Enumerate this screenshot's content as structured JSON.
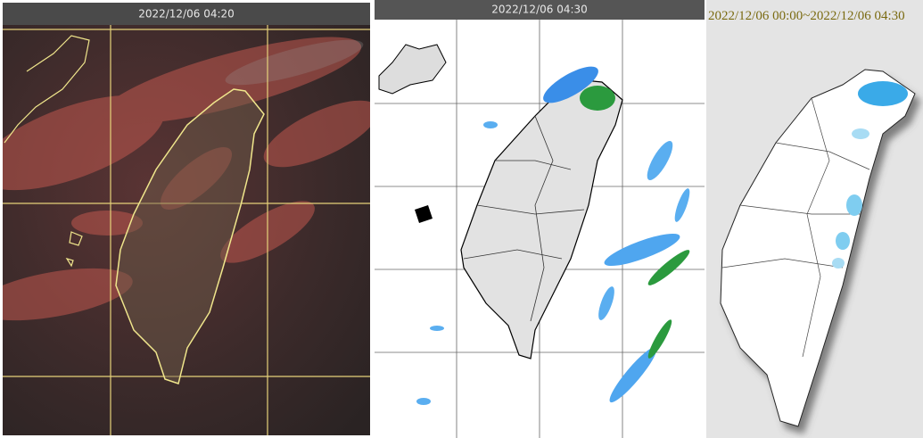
{
  "panels": [
    {
      "title": "2022/12/06 04:20"
    },
    {
      "title": "2022/12/06 04:30"
    },
    {
      "title": "2022/12/06 00:00~2022/12/06 04:30"
    }
  ]
}
